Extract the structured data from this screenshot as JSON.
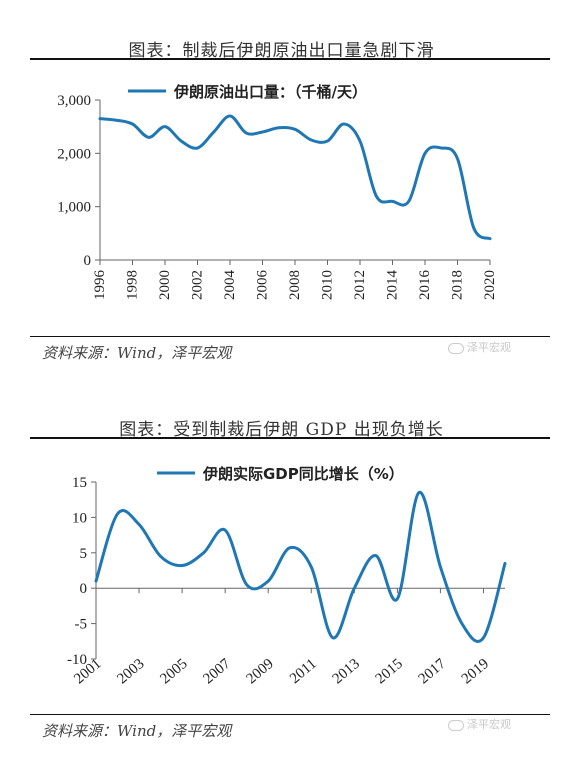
{
  "charts": [
    {
      "title": "图表：制裁后伊朗原油出口量急剧下滑",
      "source": "资料来源：Wind，泽平宏观",
      "watermark": "泽平宏观"
    },
    {
      "title": "图表：受到制裁后伊朗 GDP 出现负增长",
      "source": "资料来源：Wind，泽平宏观",
      "watermark": "泽平宏观"
    }
  ],
  "colors": {
    "line": "#1f77b4",
    "axis": "#666666"
  },
  "chart_data": [
    {
      "type": "line",
      "legend": "伊朗原油出口量：（千桶/天）",
      "x": [
        1996,
        1997,
        1998,
        1999,
        2000,
        2001,
        2002,
        2003,
        2004,
        2005,
        2006,
        2007,
        2008,
        2009,
        2010,
        2011,
        2012,
        2013,
        2014,
        2015,
        2016,
        2017,
        2018,
        2019,
        2020
      ],
      "y": [
        2650,
        2620,
        2550,
        2300,
        2500,
        2230,
        2100,
        2400,
        2700,
        2380,
        2400,
        2480,
        2450,
        2250,
        2230,
        2550,
        2230,
        1200,
        1100,
        1100,
        2000,
        2100,
        1900,
        600,
        400
      ],
      "xticks": [
        "1996",
        "1998",
        "2000",
        "2002",
        "2004",
        "2006",
        "2008",
        "2010",
        "2012",
        "2014",
        "2016",
        "2018",
        "2020"
      ],
      "yticks": [
        "0",
        "1,000",
        "2,000",
        "3,000"
      ],
      "ylim": [
        0,
        3000
      ],
      "xlim": [
        1996,
        2020
      ],
      "grid": false,
      "legend_position": "top"
    },
    {
      "type": "line",
      "legend": "伊朗实际GDP同比增长（%）",
      "x": [
        2001,
        2002,
        2003,
        2004,
        2005,
        2006,
        2007,
        2008,
        2009,
        2010,
        2011,
        2012,
        2013,
        2014,
        2015,
        2016,
        2017,
        2018,
        2019,
        2020
      ],
      "y": [
        1.0,
        10.5,
        9.0,
        4.5,
        3.2,
        5.0,
        8.2,
        0.5,
        1.0,
        5.7,
        3.0,
        -7.0,
        0.0,
        4.6,
        -1.5,
        13.5,
        3.0,
        -5.0,
        -7.0,
        3.5
      ],
      "xticks": [
        "2001",
        "2003",
        "2005",
        "2007",
        "2009",
        "2011",
        "2013",
        "2015",
        "2017",
        "2019"
      ],
      "yticks": [
        "-10",
        "-5",
        "0",
        "5",
        "10",
        "15"
      ],
      "ylim": [
        -10,
        15
      ],
      "xlim": [
        2001,
        2020
      ],
      "grid": false,
      "legend_position": "top"
    }
  ]
}
